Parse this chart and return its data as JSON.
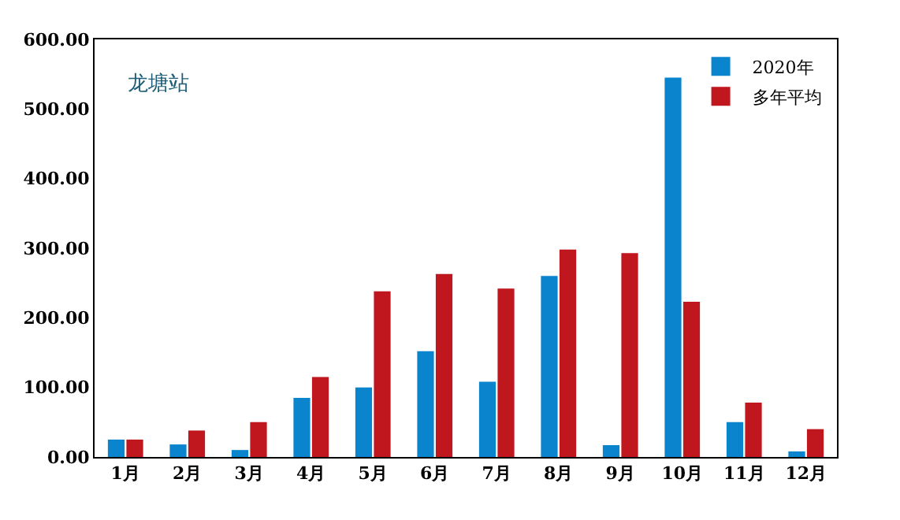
{
  "chart_data": {
    "type": "bar",
    "annotations": [
      "龙塘站"
    ],
    "categories": [
      "1月",
      "2月",
      "3月",
      "4月",
      "5月",
      "6月",
      "7月",
      "8月",
      "9月",
      "10月",
      "11月",
      "12月"
    ],
    "series": [
      {
        "name": "2020年",
        "color": "#0a84cc",
        "values": [
          25,
          18,
          10,
          85,
          100,
          152,
          108,
          260,
          17,
          545,
          50,
          8
        ]
      },
      {
        "name": "多年平均",
        "color": "#c0161e",
        "values": [
          25,
          38,
          50,
          115,
          238,
          263,
          242,
          298,
          293,
          223,
          78,
          40
        ]
      }
    ],
    "ylim": [
      0,
      600
    ],
    "yticks": [
      {
        "value": 0,
        "label": "0.00"
      },
      {
        "value": 100,
        "label": "100.00"
      },
      {
        "value": 200,
        "label": "200.00"
      },
      {
        "value": 300,
        "label": "300.00"
      },
      {
        "value": 400,
        "label": "400.00"
      },
      {
        "value": 500,
        "label": "500.00"
      },
      {
        "value": 600,
        "label": "600.00"
      }
    ],
    "legend": "top right"
  }
}
